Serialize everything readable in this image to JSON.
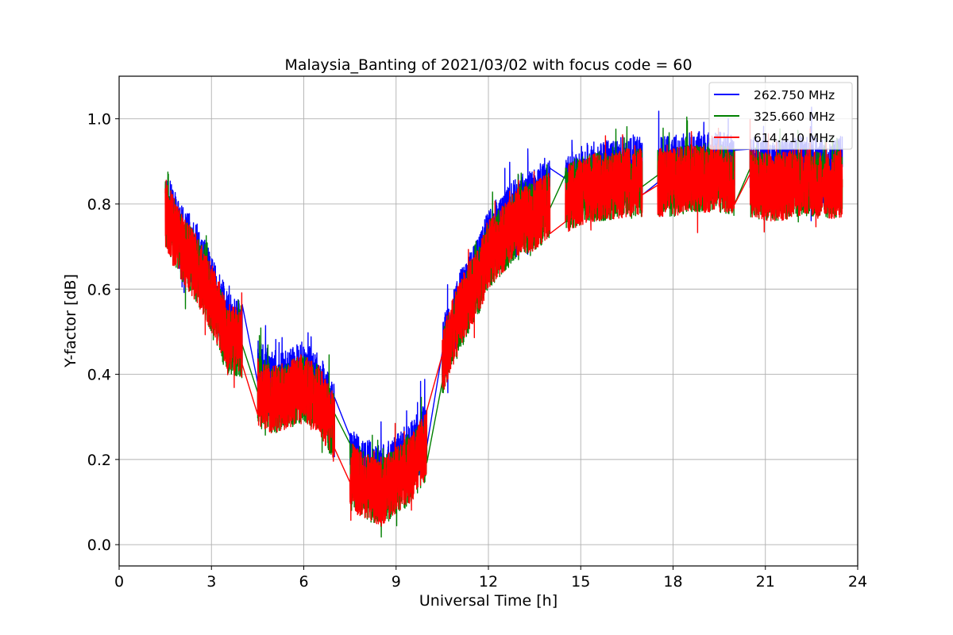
{
  "chart_data": {
    "type": "line",
    "title": "Malaysia_Banting of 2021/03/02 with focus code = 60",
    "xlabel": "Universal Time [h]",
    "ylabel": "Y-factor [dB]",
    "xlim": [
      0,
      24
    ],
    "ylim": [
      -0.05,
      1.1
    ],
    "xticks": [
      0,
      3,
      6,
      9,
      12,
      15,
      18,
      21,
      24
    ],
    "xtick_labels": [
      "0",
      "3",
      "6",
      "9",
      "12",
      "15",
      "18",
      "21",
      "24"
    ],
    "yticks": [
      0.0,
      0.2,
      0.4,
      0.6,
      0.8,
      1.0
    ],
    "ytick_labels": [
      "0.0",
      "0.2",
      "0.4",
      "0.6",
      "0.8",
      "1.0"
    ],
    "grid": true,
    "legend_position": "top-right",
    "segments": [
      {
        "start": 1.5,
        "end": 4.0
      },
      {
        "start": 4.5,
        "end": 7.0
      },
      {
        "start": 7.5,
        "end": 10.0
      },
      {
        "start": 10.5,
        "end": 11.7
      },
      {
        "start": 11.7,
        "end": 14.0
      },
      {
        "start": 14.5,
        "end": 17.0
      },
      {
        "start": 17.5,
        "end": 20.0
      },
      {
        "start": 20.5,
        "end": 23.5
      }
    ],
    "series": [
      {
        "name": "262.750 MHz",
        "color": "#0000ff",
        "points": [
          [
            1.5,
            0.8
          ],
          [
            2.0,
            0.72
          ],
          [
            2.5,
            0.68
          ],
          [
            3.0,
            0.6
          ],
          [
            3.5,
            0.52
          ],
          [
            4.0,
            0.5
          ],
          [
            4.5,
            0.4
          ],
          [
            5.0,
            0.37
          ],
          [
            5.5,
            0.38
          ],
          [
            6.0,
            0.4
          ],
          [
            6.5,
            0.37
          ],
          [
            7.0,
            0.3
          ],
          [
            7.5,
            0.19
          ],
          [
            8.0,
            0.17
          ],
          [
            8.5,
            0.15
          ],
          [
            9.0,
            0.18
          ],
          [
            9.5,
            0.21
          ],
          [
            10.0,
            0.26
          ],
          [
            10.5,
            0.45
          ],
          [
            11.0,
            0.55
          ],
          [
            11.5,
            0.63
          ],
          [
            11.7,
            0.65
          ],
          [
            12.0,
            0.71
          ],
          [
            12.5,
            0.75
          ],
          [
            13.0,
            0.79
          ],
          [
            13.5,
            0.8
          ],
          [
            14.0,
            0.83
          ],
          [
            14.5,
            0.84
          ],
          [
            15.0,
            0.86
          ],
          [
            15.5,
            0.87
          ],
          [
            16.0,
            0.87
          ],
          [
            16.5,
            0.88
          ],
          [
            17.0,
            0.88
          ],
          [
            17.5,
            0.88
          ],
          [
            18.0,
            0.88
          ],
          [
            18.5,
            0.89
          ],
          [
            19.0,
            0.89
          ],
          [
            19.5,
            0.89
          ],
          [
            20.0,
            0.88
          ],
          [
            20.5,
            0.88
          ],
          [
            21.0,
            0.87
          ],
          [
            21.5,
            0.87
          ],
          [
            22.0,
            0.88
          ],
          [
            22.5,
            0.88
          ],
          [
            23.0,
            0.87
          ],
          [
            23.5,
            0.88
          ]
        ]
      },
      {
        "name": "325.660 MHz",
        "color": "#008000",
        "points": [
          [
            1.5,
            0.78
          ],
          [
            2.0,
            0.7
          ],
          [
            2.5,
            0.65
          ],
          [
            3.0,
            0.58
          ],
          [
            3.5,
            0.48
          ],
          [
            4.0,
            0.47
          ],
          [
            4.5,
            0.37
          ],
          [
            5.0,
            0.34
          ],
          [
            5.5,
            0.35
          ],
          [
            6.0,
            0.37
          ],
          [
            6.5,
            0.34
          ],
          [
            7.0,
            0.27
          ],
          [
            7.5,
            0.16
          ],
          [
            8.0,
            0.14
          ],
          [
            8.5,
            0.12
          ],
          [
            9.0,
            0.15
          ],
          [
            9.5,
            0.18
          ],
          [
            10.0,
            0.23
          ],
          [
            10.5,
            0.42
          ],
          [
            11.0,
            0.52
          ],
          [
            11.5,
            0.6
          ],
          [
            11.7,
            0.62
          ],
          [
            12.0,
            0.68
          ],
          [
            12.5,
            0.72
          ],
          [
            13.0,
            0.76
          ],
          [
            13.5,
            0.77
          ],
          [
            14.0,
            0.8
          ],
          [
            14.5,
            0.81
          ],
          [
            15.0,
            0.83
          ],
          [
            15.5,
            0.84
          ],
          [
            16.0,
            0.84
          ],
          [
            16.5,
            0.85
          ],
          [
            17.0,
            0.85
          ],
          [
            17.5,
            0.85
          ],
          [
            18.0,
            0.85
          ],
          [
            18.5,
            0.86
          ],
          [
            19.0,
            0.86
          ],
          [
            19.5,
            0.86
          ],
          [
            20.0,
            0.85
          ],
          [
            20.5,
            0.85
          ],
          [
            21.0,
            0.84
          ],
          [
            21.5,
            0.84
          ],
          [
            22.0,
            0.85
          ],
          [
            22.5,
            0.85
          ],
          [
            23.0,
            0.84
          ],
          [
            23.5,
            0.85
          ]
        ]
      },
      {
        "name": "614.410 MHz",
        "color": "#ff0000",
        "points": [
          [
            1.5,
            0.78
          ],
          [
            2.0,
            0.7
          ],
          [
            2.5,
            0.65
          ],
          [
            3.0,
            0.58
          ],
          [
            3.5,
            0.49
          ],
          [
            4.0,
            0.47
          ],
          [
            4.5,
            0.36
          ],
          [
            5.0,
            0.34
          ],
          [
            5.5,
            0.35
          ],
          [
            6.0,
            0.37
          ],
          [
            6.5,
            0.34
          ],
          [
            7.0,
            0.27
          ],
          [
            7.5,
            0.16
          ],
          [
            8.0,
            0.14
          ],
          [
            8.5,
            0.12
          ],
          [
            9.0,
            0.15
          ],
          [
            9.5,
            0.18
          ],
          [
            10.0,
            0.24
          ],
          [
            10.5,
            0.43
          ],
          [
            11.0,
            0.53
          ],
          [
            11.5,
            0.6
          ],
          [
            11.7,
            0.62
          ],
          [
            12.0,
            0.68
          ],
          [
            12.5,
            0.72
          ],
          [
            13.0,
            0.76
          ],
          [
            13.5,
            0.77
          ],
          [
            14.0,
            0.8
          ],
          [
            14.5,
            0.81
          ],
          [
            15.0,
            0.83
          ],
          [
            15.5,
            0.84
          ],
          [
            16.0,
            0.84
          ],
          [
            16.5,
            0.85
          ],
          [
            17.0,
            0.85
          ],
          [
            17.5,
            0.85
          ],
          [
            18.0,
            0.85
          ],
          [
            18.5,
            0.86
          ],
          [
            19.0,
            0.86
          ],
          [
            19.5,
            0.86
          ],
          [
            20.0,
            0.85
          ],
          [
            20.5,
            0.85
          ],
          [
            21.0,
            0.84
          ],
          [
            21.5,
            0.84
          ],
          [
            22.0,
            0.85
          ],
          [
            22.5,
            0.85
          ],
          [
            23.0,
            0.84
          ],
          [
            23.5,
            0.85
          ]
        ]
      }
    ],
    "noise_amplitude_db": 0.16
  }
}
